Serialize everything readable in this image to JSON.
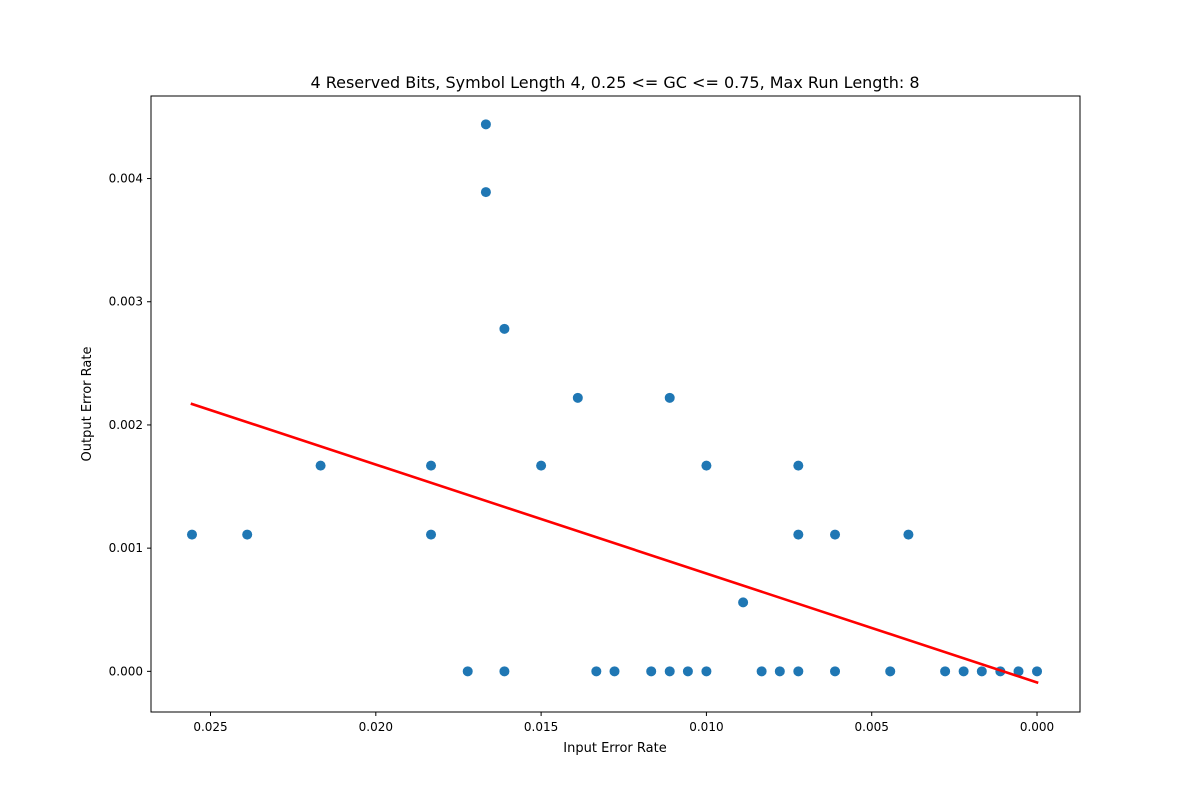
{
  "chart_data": {
    "type": "scatter",
    "title": "4 Reserved Bits, Symbol Length 4, 0.25 <= GC <= 0.75, Max Run Length: 8",
    "xlabel": "Input Error Rate",
    "ylabel": "Output Error Rate",
    "xlim": [
      0.0268,
      -0.0013
    ],
    "ylim": [
      -0.00033,
      0.00467
    ],
    "x_inverted": true,
    "grid": false,
    "x_ticks": [
      {
        "value": 0.025,
        "label": "0.025"
      },
      {
        "value": 0.02,
        "label": "0.020"
      },
      {
        "value": 0.015,
        "label": "0.015"
      },
      {
        "value": 0.01,
        "label": "0.010"
      },
      {
        "value": 0.005,
        "label": "0.005"
      },
      {
        "value": 0.0,
        "label": "0.000"
      }
    ],
    "y_ticks": [
      {
        "value": 0.0,
        "label": "0.000"
      },
      {
        "value": 0.001,
        "label": "0.001"
      },
      {
        "value": 0.002,
        "label": "0.002"
      },
      {
        "value": 0.003,
        "label": "0.003"
      },
      {
        "value": 0.004,
        "label": "0.004"
      }
    ],
    "colors": {
      "points": "#1f77b4",
      "trend_line": "#ff0000"
    },
    "points": [
      {
        "x": 0.02556,
        "y": 0.00111
      },
      {
        "x": 0.02389,
        "y": 0.00111
      },
      {
        "x": 0.02167,
        "y": 0.00167
      },
      {
        "x": 0.01833,
        "y": 0.00167
      },
      {
        "x": 0.01833,
        "y": 0.00111
      },
      {
        "x": 0.01722,
        "y": 0.0
      },
      {
        "x": 0.01667,
        "y": 0.00444
      },
      {
        "x": 0.01667,
        "y": 0.00389
      },
      {
        "x": 0.01611,
        "y": 0.00278
      },
      {
        "x": 0.01611,
        "y": 0.0
      },
      {
        "x": 0.015,
        "y": 0.00167
      },
      {
        "x": 0.01389,
        "y": 0.00222
      },
      {
        "x": 0.01333,
        "y": 0.0
      },
      {
        "x": 0.01278,
        "y": 0.0
      },
      {
        "x": 0.01167,
        "y": 0.0
      },
      {
        "x": 0.01111,
        "y": 0.00222
      },
      {
        "x": 0.01111,
        "y": 0.0
      },
      {
        "x": 0.01056,
        "y": 0.0
      },
      {
        "x": 0.01,
        "y": 0.00167
      },
      {
        "x": 0.01,
        "y": 0.0
      },
      {
        "x": 0.00889,
        "y": 0.00056
      },
      {
        "x": 0.00833,
        "y": 0.0
      },
      {
        "x": 0.00778,
        "y": 0.0
      },
      {
        "x": 0.00722,
        "y": 0.00167
      },
      {
        "x": 0.00722,
        "y": 0.00111
      },
      {
        "x": 0.00722,
        "y": 0.0
      },
      {
        "x": 0.00611,
        "y": 0.00111
      },
      {
        "x": 0.00611,
        "y": 0.0
      },
      {
        "x": 0.00444,
        "y": 0.0
      },
      {
        "x": 0.00389,
        "y": 0.00111
      },
      {
        "x": 0.00278,
        "y": 0.0
      },
      {
        "x": 0.00222,
        "y": 0.0
      },
      {
        "x": 0.00167,
        "y": 0.0
      },
      {
        "x": 0.00111,
        "y": 0.0
      },
      {
        "x": 0.00056,
        "y": 0.0
      },
      {
        "x": 0.0,
        "y": 0.0
      }
    ],
    "trend_line": {
      "x": [
        0.02556,
        0.0
      ],
      "y": [
        0.00217,
        -9e-05
      ]
    }
  }
}
